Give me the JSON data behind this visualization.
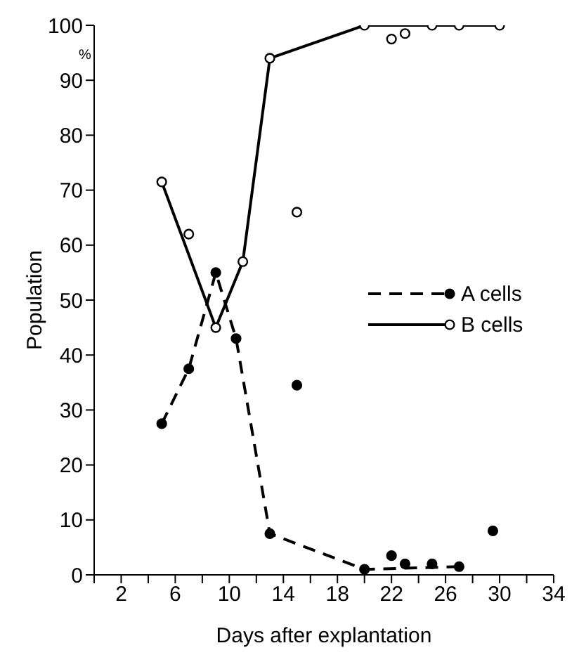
{
  "chart_data": {
    "type": "line",
    "xlabel": "Days after explantation",
    "ylabel": "Population",
    "annotations": [
      "%"
    ],
    "xlim": [
      0,
      34
    ],
    "xticks": [
      {
        "value": 0,
        "label": null
      },
      2,
      {
        "value": 4,
        "label": null
      },
      6,
      {
        "value": 8,
        "label": null
      },
      10,
      {
        "value": 12,
        "label": null
      },
      14,
      {
        "value": 16,
        "label": null
      },
      18,
      {
        "value": 20,
        "label": null
      },
      22,
      {
        "value": 24,
        "label": null
      },
      26,
      {
        "value": 28,
        "label": null
      },
      30,
      {
        "value": 32,
        "label": null
      },
      34
    ],
    "ylim": [
      0,
      100
    ],
    "yticks": [
      0,
      10,
      20,
      30,
      40,
      50,
      60,
      70,
      80,
      90,
      100
    ],
    "grid": false,
    "legend": "right",
    "marker": "circle",
    "series": [
      {
        "name": "A cells",
        "color": "#000000",
        "line_style": "dashed",
        "x": [
          5,
          7,
          9,
          10.5,
          13,
          20,
          27
        ],
        "values": [
          27.5,
          37.5,
          55,
          43,
          7.5,
          1,
          1.5
        ]
      },
      {
        "name": "B cells",
        "color": "#000000",
        "line_style": "solid",
        "x": [
          5,
          9,
          11,
          13,
          20,
          25,
          27,
          30
        ],
        "values": [
          71.5,
          45,
          57,
          94,
          100,
          100,
          100,
          100
        ]
      },
      {
        "type": "scatter",
        "color": "#000000",
        "x": [
          15,
          22,
          23,
          25,
          29.5
        ],
        "values": [
          34.5,
          3.5,
          2,
          2,
          8
        ]
      },
      {
        "type": "scatter",
        "color": "#000000",
        "x": [
          7,
          15,
          22,
          23
        ],
        "values": [
          62,
          66,
          97.5,
          98.5
        ]
      }
    ]
  }
}
